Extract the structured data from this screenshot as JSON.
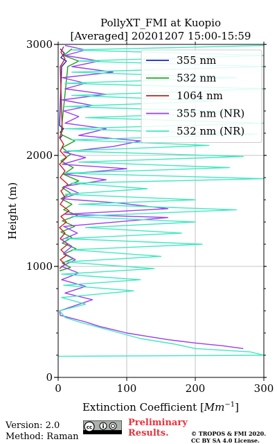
{
  "chart_data": {
    "type": "line",
    "title": "PollyXT_FMI at Kuopio",
    "subtitle": "[Averaged] 20201207 15:00-15:59",
    "xlabel": "Extinction Coefficient [Mm⁻¹]",
    "xlabel_main": "Extinction Coefficient ",
    "xlabel_unit": "Mm",
    "xlabel_exp": "−1",
    "ylabel": "Height (m)",
    "xlim": [
      0,
      300
    ],
    "ylim": [
      0,
      3000
    ],
    "xticks": [
      "0",
      "100",
      "200",
      "300"
    ],
    "yticks": [
      "0",
      "1000",
      "2000",
      "3000"
    ],
    "grid": true,
    "legend_position": "top-right",
    "series": [
      {
        "name": "355 nm",
        "color": "#1f1fc8",
        "points": [
          [
            2,
            2150
          ],
          [
            6,
            2180
          ],
          [
            3,
            2210
          ],
          [
            8,
            2240
          ],
          [
            2,
            2270
          ],
          [
            5,
            2800
          ],
          [
            12,
            2850
          ],
          [
            4,
            2880
          ],
          [
            9,
            2920
          ],
          [
            3,
            2960
          ]
        ]
      },
      {
        "name": "532 nm",
        "color": "#1fa01f",
        "points": [
          [
            2,
            960
          ],
          [
            18,
            990
          ],
          [
            6,
            1030
          ],
          [
            22,
            1070
          ],
          [
            8,
            1110
          ],
          [
            26,
            1160
          ],
          [
            6,
            1210
          ],
          [
            20,
            1260
          ],
          [
            4,
            1310
          ],
          [
            24,
            1360
          ],
          [
            6,
            1410
          ],
          [
            28,
            1460
          ],
          [
            8,
            1510
          ],
          [
            20,
            1560
          ],
          [
            4,
            1610
          ],
          [
            18,
            1660
          ],
          [
            6,
            1710
          ],
          [
            30,
            1770
          ],
          [
            8,
            1830
          ],
          [
            22,
            1890
          ],
          [
            4,
            1950
          ],
          [
            18,
            2010
          ],
          [
            6,
            2070
          ],
          [
            24,
            2130
          ],
          [
            4,
            2190
          ],
          [
            14,
            2800
          ],
          [
            30,
            2850
          ],
          [
            8,
            2900
          ],
          [
            20,
            2960
          ]
        ]
      },
      {
        "name": "1064 nm",
        "color": "#c81e1e",
        "points": [
          [
            2,
            980
          ],
          [
            10,
            1020
          ],
          [
            3,
            1060
          ],
          [
            12,
            1100
          ],
          [
            4,
            1150
          ],
          [
            14,
            1200
          ],
          [
            3,
            1250
          ],
          [
            10,
            1300
          ],
          [
            2,
            1350
          ],
          [
            12,
            1400
          ],
          [
            4,
            1450
          ],
          [
            16,
            1500
          ],
          [
            3,
            1560
          ],
          [
            10,
            1620
          ],
          [
            4,
            1680
          ],
          [
            14,
            1740
          ],
          [
            3,
            1800
          ],
          [
            10,
            1860
          ],
          [
            2,
            1920
          ],
          [
            12,
            1980
          ],
          [
            3,
            2040
          ],
          [
            8,
            2100
          ],
          [
            2,
            2160
          ],
          [
            6,
            2220
          ],
          [
            3,
            2800
          ],
          [
            10,
            2870
          ],
          [
            4,
            2930
          ],
          [
            8,
            2980
          ]
        ]
      },
      {
        "name": "355 nm (NR)",
        "color": "#9b3cf0",
        "points": [
          [
            270,
            260
          ],
          [
            240,
            285
          ],
          [
            200,
            310
          ],
          [
            160,
            340
          ],
          [
            130,
            370
          ],
          [
            100,
            400
          ],
          [
            80,
            430
          ],
          [
            60,
            460
          ],
          [
            40,
            500
          ],
          [
            15,
            540
          ],
          [
            3,
            560
          ],
          [
            2,
            600
          ],
          [
            50,
            700
          ],
          [
            10,
            760
          ],
          [
            40,
            820
          ],
          [
            5,
            880
          ],
          [
            30,
            940
          ],
          [
            5,
            1000
          ],
          [
            25,
            1060
          ],
          [
            8,
            1120
          ],
          [
            20,
            1180
          ],
          [
            5,
            1240
          ],
          [
            28,
            1300
          ],
          [
            8,
            1360
          ],
          [
            160,
            1440
          ],
          [
            10,
            1470
          ],
          [
            160,
            1520
          ],
          [
            90,
            1570
          ],
          [
            5,
            1610
          ],
          [
            30,
            1660
          ],
          [
            8,
            1720
          ],
          [
            70,
            1780
          ],
          [
            10,
            1830
          ],
          [
            100,
            1880
          ],
          [
            6,
            1920
          ],
          [
            40,
            1980
          ],
          [
            8,
            2030
          ],
          [
            80,
            2080
          ],
          [
            120,
            2130
          ],
          [
            30,
            2180
          ],
          [
            70,
            2240
          ],
          [
            10,
            2290
          ],
          [
            30,
            2350
          ],
          [
            8,
            2400
          ],
          [
            50,
            2450
          ],
          [
            6,
            2500
          ],
          [
            70,
            2550
          ],
          [
            10,
            2600
          ],
          [
            40,
            2650
          ],
          [
            6,
            2700
          ],
          [
            80,
            2750
          ],
          [
            20,
            2800
          ],
          [
            60,
            2850
          ],
          [
            10,
            2900
          ],
          [
            40,
            2950
          ],
          [
            10,
            2990
          ]
        ]
      },
      {
        "name": "532 nm (NR)",
        "color": "#40e8c0",
        "points": [
          [
            0,
            190
          ],
          [
            300,
            200
          ],
          [
            280,
            230
          ],
          [
            200,
            260
          ],
          [
            170,
            300
          ],
          [
            120,
            350
          ],
          [
            90,
            400
          ],
          [
            60,
            450
          ],
          [
            30,
            500
          ],
          [
            10,
            540
          ],
          [
            2,
            600
          ],
          [
            40,
            660
          ],
          [
            5,
            720
          ],
          [
            110,
            780
          ],
          [
            8,
            830
          ],
          [
            120,
            880
          ],
          [
            5,
            930
          ],
          [
            140,
            980
          ],
          [
            10,
            1040
          ],
          [
            150,
            1090
          ],
          [
            20,
            1150
          ],
          [
            210,
            1200
          ],
          [
            10,
            1250
          ],
          [
            180,
            1300
          ],
          [
            40,
            1350
          ],
          [
            200,
            1400
          ],
          [
            20,
            1450
          ],
          [
            260,
            1510
          ],
          [
            30,
            1560
          ],
          [
            200,
            1600
          ],
          [
            10,
            1650
          ],
          [
            130,
            1700
          ],
          [
            20,
            1750
          ],
          [
            300,
            1790
          ],
          [
            10,
            1840
          ],
          [
            250,
            1890
          ],
          [
            30,
            1940
          ],
          [
            270,
            1990
          ],
          [
            10,
            2040
          ],
          [
            220,
            2090
          ],
          [
            20,
            2140
          ],
          [
            290,
            2190
          ],
          [
            10,
            2240
          ],
          [
            300,
            2290
          ],
          [
            40,
            2340
          ],
          [
            270,
            2390
          ],
          [
            10,
            2440
          ],
          [
            230,
            2490
          ],
          [
            20,
            2540
          ],
          [
            300,
            2600
          ],
          [
            10,
            2650
          ],
          [
            260,
            2700
          ],
          [
            20,
            2750
          ],
          [
            300,
            2800
          ],
          [
            30,
            2850
          ],
          [
            300,
            2900
          ],
          [
            20,
            2950
          ],
          [
            300,
            2990
          ]
        ]
      }
    ]
  },
  "footer": {
    "version": "Version: 2.0",
    "method": "Method: Raman",
    "preliminary_line1": "Preliminary",
    "preliminary_line2": "Results.",
    "copyright_line1": "© TROPOS & FMI 2020.",
    "copyright_line2": "CC BY SA 4.0 License.",
    "license_logo": "cc-by-sa-icon"
  }
}
